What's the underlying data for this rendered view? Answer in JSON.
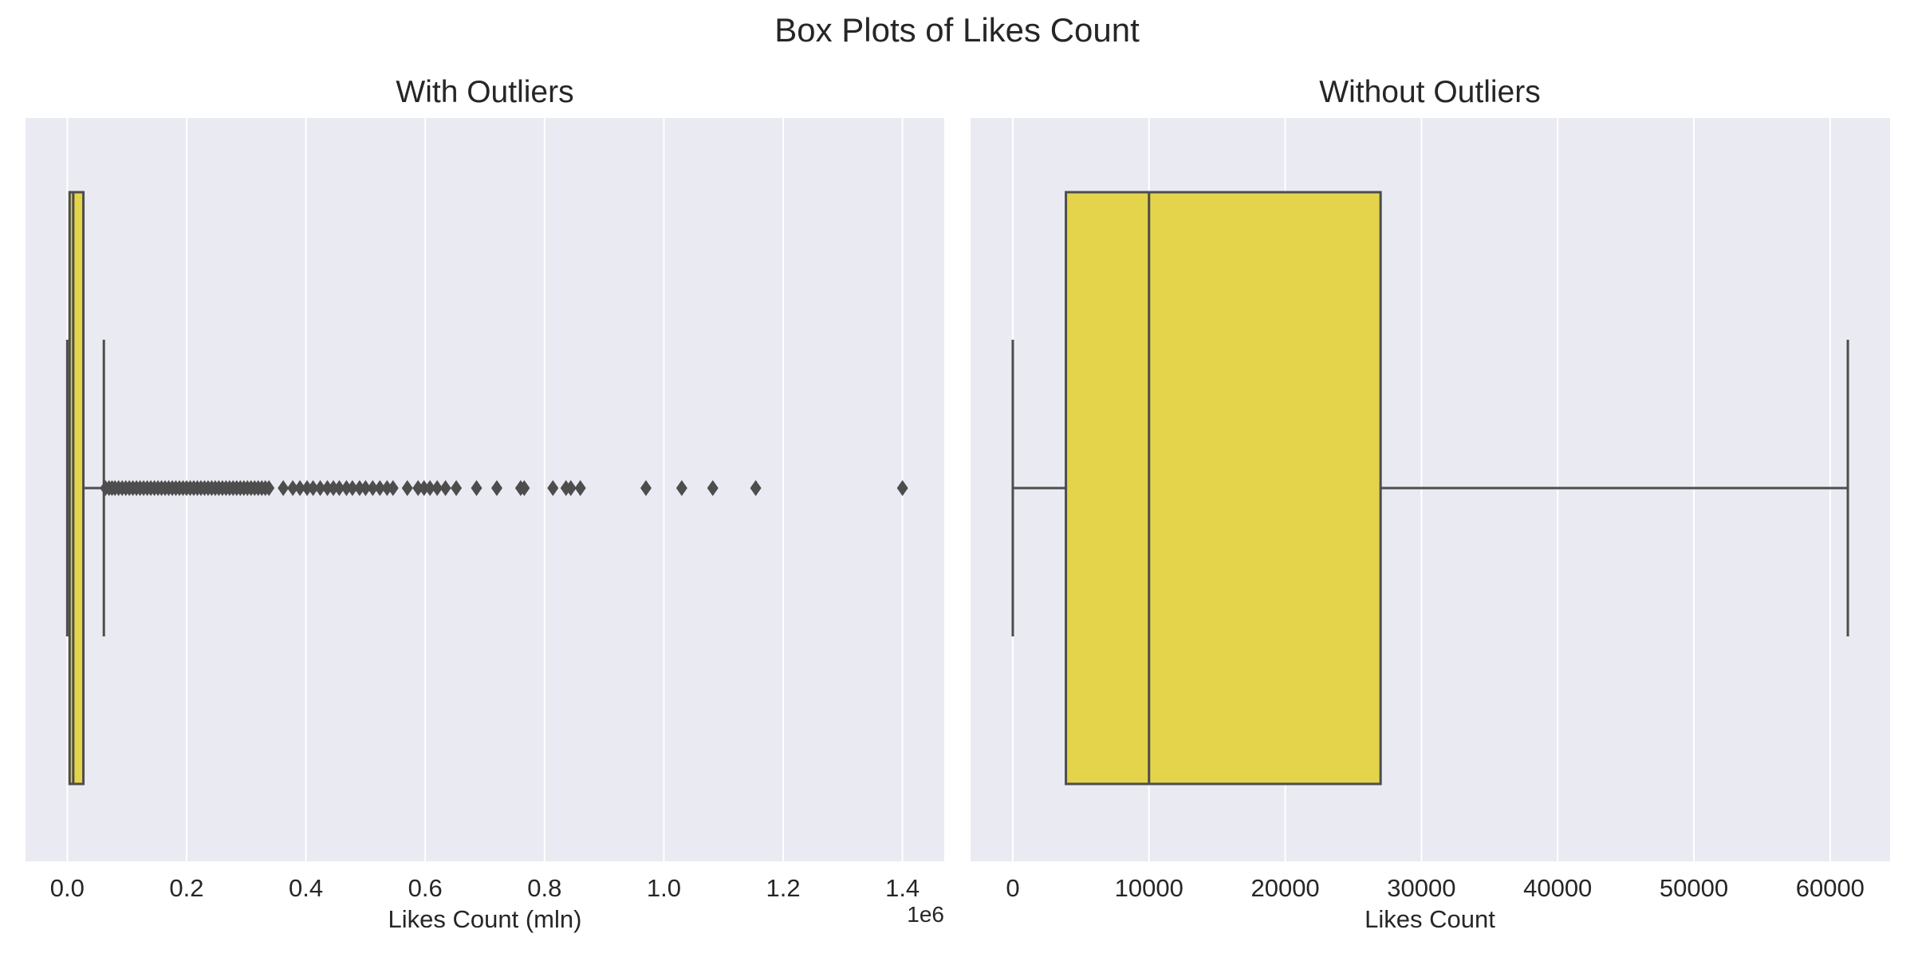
{
  "figure_title": "Box Plots of Likes Count",
  "colors": {
    "background": "#eaeaf2",
    "grid": "#ffffff",
    "box_fill": "#e3d44c",
    "box_line": "#4d4d4d",
    "flier": "#4d4d4d",
    "text": "#262626"
  },
  "chart_data": [
    {
      "type": "box",
      "title": "With Outliers",
      "xlabel": "Likes Count (mln)",
      "ylabel": "",
      "orientation": "horizontal",
      "grid": true,
      "xlim": [
        -70000,
        1470000
      ],
      "xticks": [
        0,
        200000,
        400000,
        600000,
        800000,
        1000000,
        1200000,
        1400000
      ],
      "xtick_labels": [
        "0.0",
        "0.2",
        "0.4",
        "0.6",
        "0.8",
        "1.0",
        "1.2",
        "1.4"
      ],
      "offset_label": "1e6",
      "box": {
        "whisker_low": 0,
        "q1": 3900,
        "median": 10000,
        "q3": 27000,
        "whisker_high": 61300
      },
      "fliers": [
        64000,
        70000,
        75000,
        80000,
        86000,
        92000,
        98000,
        104000,
        110000,
        116000,
        122000,
        128000,
        134000,
        140000,
        146000,
        152000,
        158000,
        164000,
        170000,
        176000,
        182000,
        188000,
        194000,
        200000,
        206000,
        212000,
        218000,
        224000,
        230000,
        236000,
        242000,
        248000,
        254000,
        260000,
        266000,
        272000,
        278000,
        284000,
        290000,
        296000,
        302000,
        308000,
        314000,
        320000,
        326000,
        332000,
        338000,
        362000,
        378000,
        390000,
        402000,
        412000,
        424000,
        436000,
        446000,
        456000,
        468000,
        478000,
        490000,
        500000,
        512000,
        524000,
        536000,
        546000,
        570000,
        588000,
        598000,
        608000,
        620000,
        634000,
        652000,
        686000,
        720000,
        760000,
        766000,
        814000,
        836000,
        844000,
        860000,
        970000,
        1030000,
        1082000,
        1154000,
        1400000
      ]
    },
    {
      "type": "box",
      "title": "Without Outliers",
      "xlabel": "Likes Count",
      "ylabel": "",
      "orientation": "horizontal",
      "grid": true,
      "xlim": [
        -3100,
        64400
      ],
      "xticks": [
        0,
        10000,
        20000,
        30000,
        40000,
        50000,
        60000
      ],
      "xtick_labels": [
        "0",
        "10000",
        "20000",
        "30000",
        "40000",
        "50000",
        "60000"
      ],
      "offset_label": "",
      "box": {
        "whisker_low": 0,
        "q1": 3900,
        "median": 10000,
        "q3": 27000,
        "whisker_high": 61300
      },
      "fliers": []
    }
  ]
}
